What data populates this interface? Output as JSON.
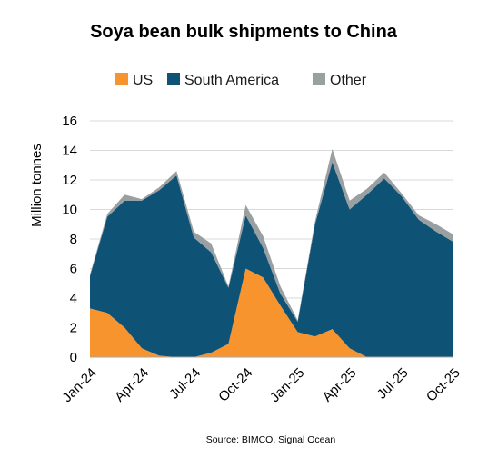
{
  "chart_data": {
    "type": "area",
    "stacked": true,
    "title": "Soya bean bulk shipments to China",
    "ylabel": "Million tonnes",
    "xlabel": "",
    "ylim": [
      0,
      16
    ],
    "yticks": [
      0,
      2,
      4,
      6,
      8,
      10,
      12,
      14,
      16
    ],
    "grid": "horizontal",
    "legend_position": "top",
    "x": [
      "Jan-24",
      "Feb-24",
      "Mar-24",
      "Apr-24",
      "May-24",
      "Jun-24",
      "Jul-24",
      "Aug-24",
      "Sep-24",
      "Oct-24",
      "Nov-24",
      "Dec-24",
      "Jan-25",
      "Feb-25",
      "Mar-25",
      "Apr-25",
      "May-25",
      "Jun-25",
      "Jul-25",
      "Aug-25",
      "Sep-25",
      "Oct-25"
    ],
    "xtick_labels": [
      "Jan-24",
      "Apr-24",
      "Jul-24",
      "Oct-24",
      "Jan-25",
      "Apr-25",
      "Jul-25",
      "Oct-25"
    ],
    "series": [
      {
        "name": "US",
        "color": "#f7942d",
        "values": [
          3.3,
          3.0,
          2.0,
          0.6,
          0.1,
          0.0,
          0.0,
          0.3,
          0.9,
          6.0,
          5.4,
          3.5,
          1.7,
          1.4,
          1.9,
          0.6,
          0.0,
          0.0,
          0.0,
          0.0,
          0.0,
          0.0
        ]
      },
      {
        "name": "South America",
        "color": "#0e5276",
        "values": [
          2.2,
          6.5,
          8.6,
          10.0,
          11.2,
          12.3,
          8.1,
          6.8,
          3.8,
          3.6,
          2.0,
          0.8,
          0.7,
          7.6,
          11.3,
          9.4,
          11.0,
          12.1,
          10.9,
          9.3,
          8.5,
          7.8
        ]
      },
      {
        "name": "Other",
        "color": "#9a9fa1",
        "values": [
          0.1,
          0.2,
          0.4,
          0.1,
          0.2,
          0.3,
          0.4,
          0.6,
          0.1,
          0.7,
          0.8,
          0.5,
          0.1,
          0.2,
          0.9,
          0.6,
          0.4,
          0.4,
          0.2,
          0.3,
          0.5,
          0.5
        ]
      }
    ],
    "source": "Source: BIMCO, Signal Ocean"
  },
  "colors": {
    "us": "#f7942d",
    "south_america": "#0e5276",
    "other": "#9a9fa1",
    "grid": "#d9d9d9"
  }
}
